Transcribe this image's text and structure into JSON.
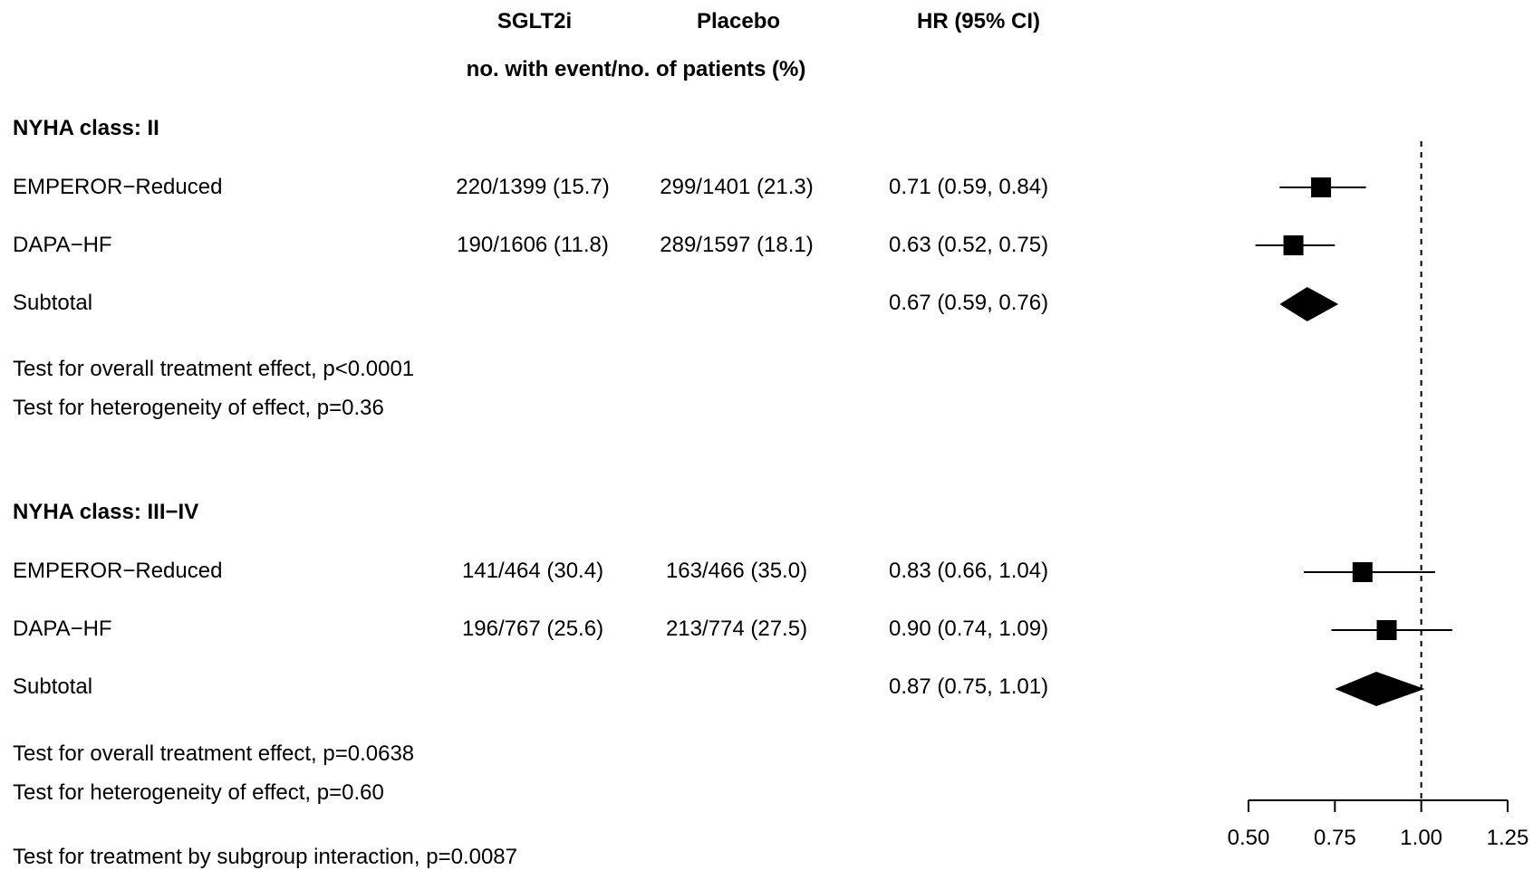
{
  "header": {
    "col_sglt2i": "SGLT2i",
    "col_placebo": "Placebo",
    "col_hr": "HR (95% CI)",
    "subheader": "no. with event/no. of patients (%)"
  },
  "groups": [
    {
      "title": "NYHA class: II",
      "rows": [
        {
          "label": "EMPEROR−Reduced",
          "sglt2i": "220/1399 (15.7)",
          "placebo": "299/1401 (21.3)",
          "hr_text": "0.71 (0.59,  0.84)"
        },
        {
          "label": "DAPA−HF",
          "sglt2i": "190/1606 (11.8)",
          "placebo": "289/1597 (18.1)",
          "hr_text": "0.63 (0.52,  0.75)"
        },
        {
          "label": "Subtotal",
          "sglt2i": "",
          "placebo": "",
          "hr_text": "0.67 (0.59,  0.76)"
        }
      ],
      "test_overall": "Test for overall treatment effect, p<0.0001",
      "test_heterogeneity": "Test for heterogeneity of effect, p=0.36"
    },
    {
      "title": "NYHA class: III−IV",
      "rows": [
        {
          "label": "EMPEROR−Reduced",
          "sglt2i": "141/464 (30.4)",
          "placebo": "163/466 (35.0)",
          "hr_text": "0.83 (0.66,  1.04)"
        },
        {
          "label": "DAPA−HF",
          "sglt2i": "196/767 (25.6)",
          "placebo": "213/774 (27.5)",
          "hr_text": "0.90 (0.74,  1.09)"
        },
        {
          "label": "Subtotal",
          "sglt2i": "",
          "placebo": "",
          "hr_text": "0.87 (0.75,  1.01)"
        }
      ],
      "test_overall": "Test for overall treatment effect, p=0.0638",
      "test_heterogeneity": "Test for heterogeneity of effect, p=0.60"
    }
  ],
  "interaction_test": "Test for treatment by subgroup interaction, p=0.0087",
  "chart_data": {
    "type": "forest",
    "xlim": [
      0.5,
      1.25
    ],
    "xticks": [
      0.5,
      0.75,
      1.0,
      1.25
    ],
    "xtick_labels": [
      "0.50",
      "0.75",
      "1.00",
      "1.25"
    ],
    "reference_line": 1.0,
    "grid": false,
    "series": [
      {
        "name": "EMPEROR−Reduced",
        "group": "NYHA class: II",
        "hr": 0.71,
        "lo": 0.59,
        "hi": 0.84,
        "kind": "study"
      },
      {
        "name": "DAPA−HF",
        "group": "NYHA class: II",
        "hr": 0.63,
        "lo": 0.52,
        "hi": 0.75,
        "kind": "study"
      },
      {
        "name": "Subtotal",
        "group": "NYHA class: II",
        "hr": 0.67,
        "lo": 0.59,
        "hi": 0.76,
        "kind": "subtotal"
      },
      {
        "name": "EMPEROR−Reduced",
        "group": "NYHA class: III−IV",
        "hr": 0.83,
        "lo": 0.66,
        "hi": 1.04,
        "kind": "study"
      },
      {
        "name": "DAPA−HF",
        "group": "NYHA class: III−IV",
        "hr": 0.9,
        "lo": 0.74,
        "hi": 1.09,
        "kind": "study"
      },
      {
        "name": "Subtotal",
        "group": "NYHA class: III−IV",
        "hr": 0.87,
        "lo": 0.75,
        "hi": 1.01,
        "kind": "subtotal"
      }
    ],
    "colors": {
      "marks": "#000000",
      "reference_line": "#000000"
    }
  }
}
